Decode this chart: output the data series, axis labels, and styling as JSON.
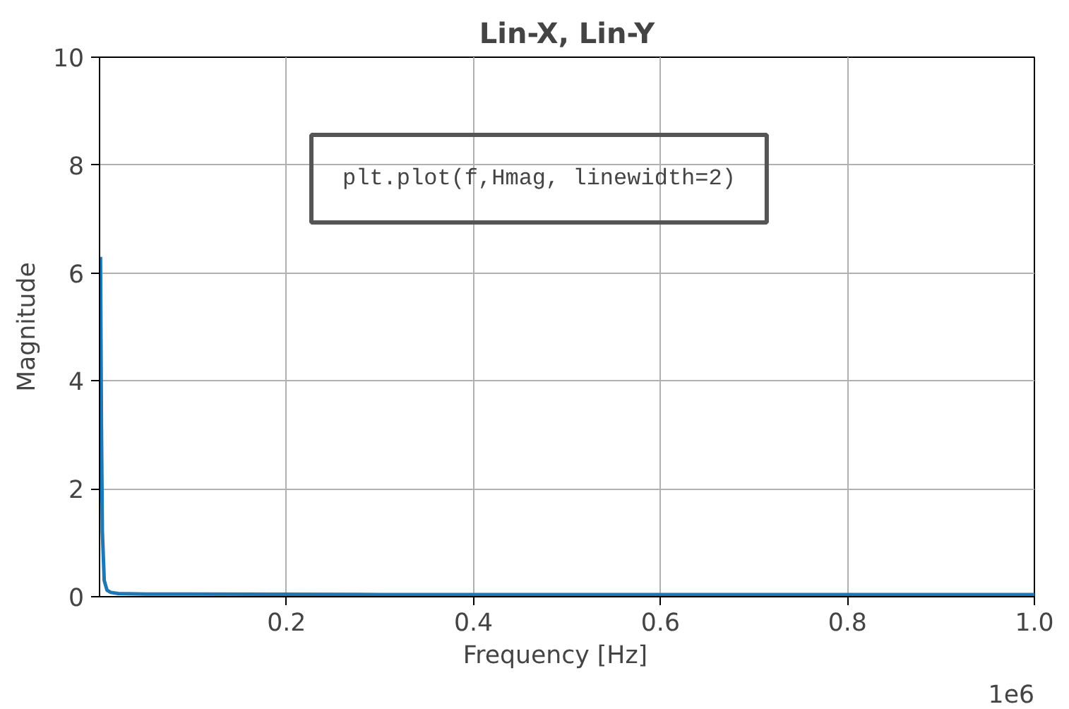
{
  "chart_data": {
    "type": "line",
    "title": "Lin-X, Lin-Y",
    "xlabel": "Frequency    [Hz]",
    "ylabel": "Magnitude",
    "x": [
      0.001,
      0.002,
      0.003,
      0.005,
      0.008,
      0.012,
      0.02,
      0.05,
      0.1,
      0.3,
      0.6,
      1.0
    ],
    "series": [
      {
        "color": "#1f77b4",
        "values": [
          6.3,
          3.2,
          1.2,
          0.3,
          0.12,
          0.08,
          0.06,
          0.05,
          0.05,
          0.04,
          0.04,
          0.04
        ]
      }
    ],
    "xlim": [
      0,
      1.0
    ],
    "ylim": [
      0,
      10
    ],
    "xticks": [
      0.2,
      0.4,
      0.6,
      0.8,
      {
        "value": 1.0,
        "label": "1.0"
      }
    ],
    "yticks": [
      0,
      2,
      4,
      6,
      8,
      10
    ],
    "grid": true,
    "line_style": "solid",
    "marker": "none",
    "annotations": [
      "plt.plot(f,Hmag, linewidth=2)",
      "1e6"
    ]
  }
}
